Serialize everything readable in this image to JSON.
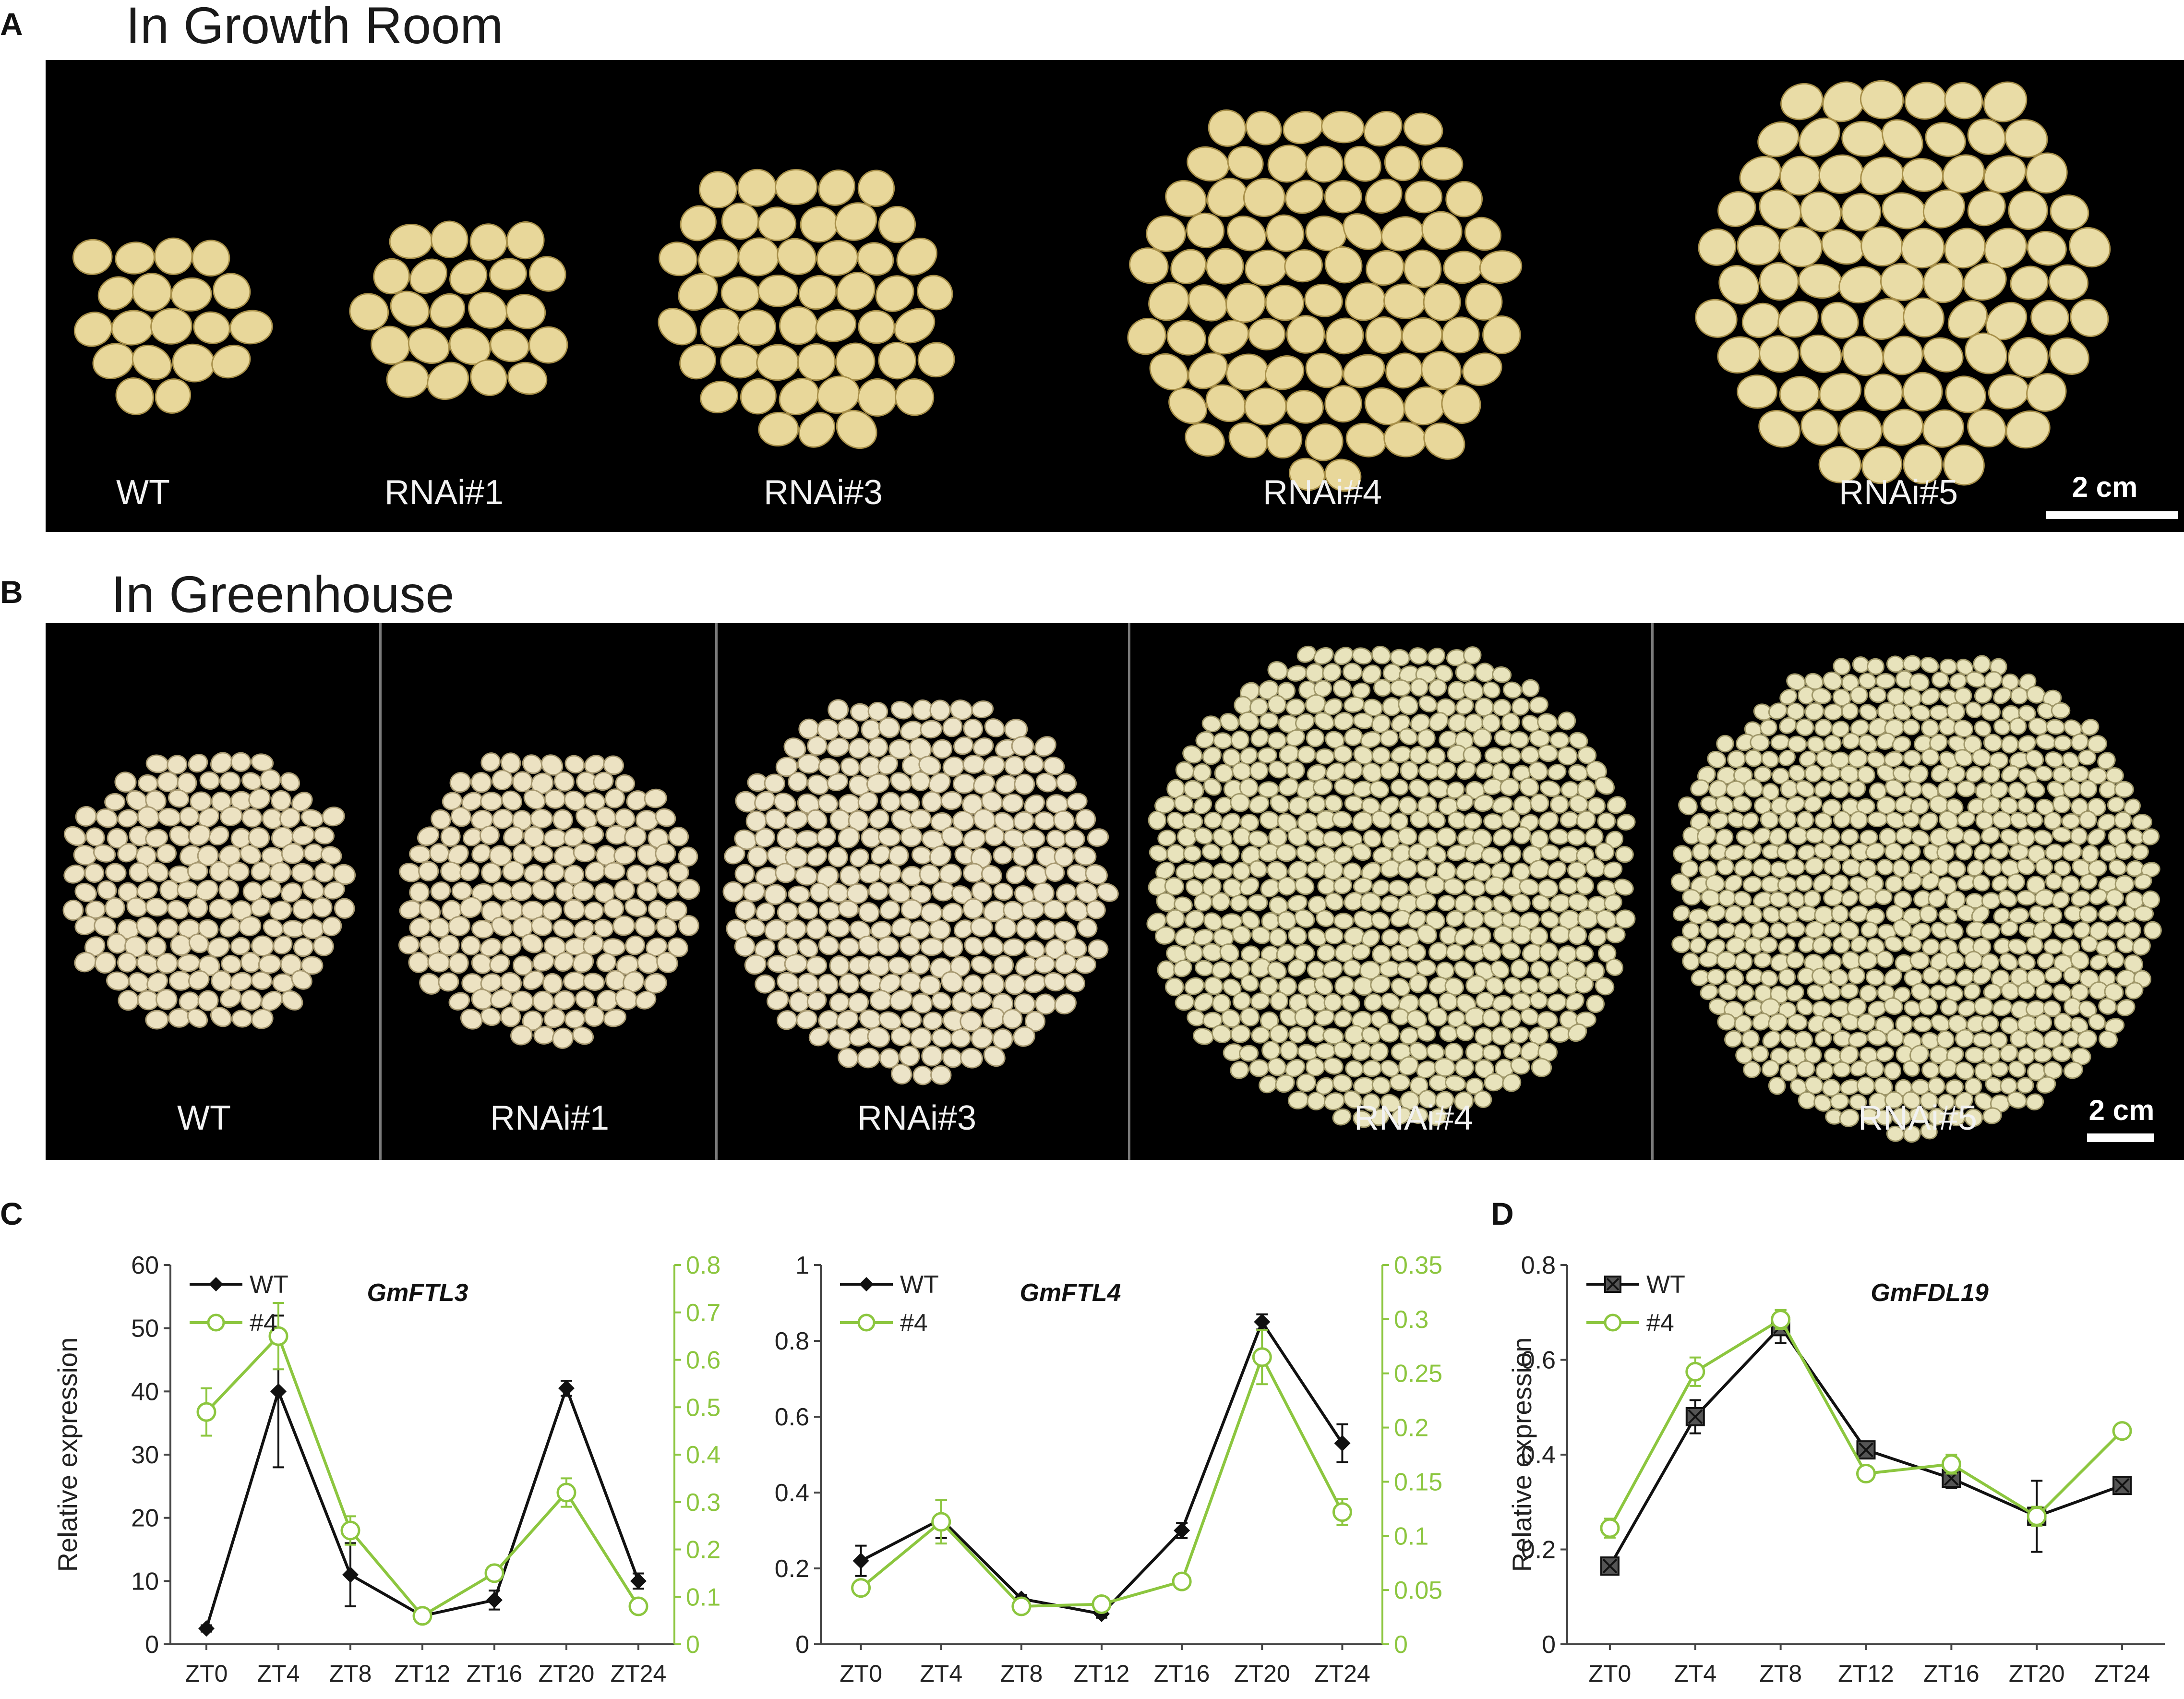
{
  "figure": {
    "panel_a": {
      "letter": "A",
      "title": "In Growth Room",
      "labels": [
        "WT",
        "RNAi#1",
        "RNAi#3",
        "RNAi#4",
        "RNAi#5"
      ],
      "scale": "2 cm"
    },
    "panel_b": {
      "letter": "B",
      "title": "In Greenhouse",
      "labels": [
        "WT",
        "RNAi#1",
        "RNAi#3",
        "RNAi#4",
        "RNAi#5"
      ],
      "scale": "2 cm"
    },
    "panel_c": {
      "letter": "C"
    },
    "panel_d": {
      "letter": "D"
    }
  },
  "colors": {
    "wt_series": "#111111",
    "rnai4_series": "#8cc63f",
    "photo_background": "#000000",
    "seed": "#e8d79a"
  },
  "chart_data": [
    {
      "type": "line",
      "panel": "C",
      "title": "GmFTL3",
      "xlabel": "",
      "ylabel": "Relative expression",
      "categories": [
        "ZT0",
        "ZT4",
        "ZT8",
        "ZT12",
        "ZT16",
        "ZT20",
        "ZT24"
      ],
      "ylim": [
        0,
        60
      ],
      "yticks": [
        0,
        10,
        20,
        30,
        40,
        50,
        60
      ],
      "y2lim": [
        0,
        0.8
      ],
      "y2ticks": [
        "0",
        "0.1",
        "0.2",
        "0.3",
        "0.4",
        "0.5",
        "0.6",
        "0.7",
        "0.8"
      ],
      "legend": "top-left",
      "series": [
        {
          "name": "WT",
          "axis": "left",
          "marker": "diamond",
          "values": [
            2.5,
            40,
            11,
            4.5,
            7,
            40.5,
            10
          ],
          "errors": [
            0.5,
            12,
            5,
            0.8,
            1.5,
            1.2,
            1.2
          ]
        },
        {
          "name": "#4",
          "axis": "right",
          "marker": "open-circle",
          "values": [
            0.49,
            0.65,
            0.24,
            0.06,
            0.15,
            0.32,
            0.08
          ],
          "errors": [
            0.05,
            0.07,
            0.03,
            0.01,
            0.01,
            0.03,
            0.01
          ]
        }
      ]
    },
    {
      "type": "line",
      "panel": "C",
      "title": "GmFTL4",
      "xlabel": "",
      "ylabel": "",
      "categories": [
        "ZT0",
        "ZT4",
        "ZT8",
        "ZT12",
        "ZT16",
        "ZT20",
        "ZT24"
      ],
      "ylim": [
        0,
        1
      ],
      "yticks": [
        0,
        0.2,
        0.4,
        0.6,
        0.8,
        1
      ],
      "y2lim": [
        0,
        0.35
      ],
      "y2ticks": [
        "0",
        "0.05",
        "0.1",
        "0.15",
        "0.2",
        "0.25",
        "0.3",
        "0.35"
      ],
      "legend": "top-left",
      "series": [
        {
          "name": "WT",
          "axis": "left",
          "marker": "diamond",
          "values": [
            0.22,
            0.33,
            0.12,
            0.08,
            0.3,
            0.85,
            0.53
          ],
          "errors": [
            0.04,
            0.05,
            0.01,
            0.01,
            0.02,
            0.02,
            0.05
          ]
        },
        {
          "name": "#4",
          "axis": "right",
          "marker": "open-circle",
          "values": [
            0.052,
            0.113,
            0.035,
            0.037,
            0.058,
            0.265,
            0.122
          ],
          "errors": [
            0.006,
            0.02,
            0.004,
            0.003,
            0.005,
            0.025,
            0.012
          ]
        }
      ]
    },
    {
      "type": "line",
      "panel": "D",
      "title": "GmFDL19",
      "xlabel": "",
      "ylabel": "Relative expression",
      "categories": [
        "ZT0",
        "ZT4",
        "ZT8",
        "ZT12",
        "ZT16",
        "ZT20",
        "ZT24"
      ],
      "ylim": [
        0,
        0.8
      ],
      "yticks": [
        0,
        0.2,
        0.4,
        0.6,
        0.8
      ],
      "legend": "top-left",
      "series": [
        {
          "name": "WT",
          "axis": "left",
          "marker": "boxed-x",
          "values": [
            0.165,
            0.48,
            0.67,
            0.41,
            0.35,
            0.27,
            0.335
          ],
          "errors": [
            0.01,
            0.035,
            0.035,
            0.01,
            0.02,
            0.075,
            0.01
          ]
        },
        {
          "name": "#4",
          "axis": "left",
          "marker": "open-circle",
          "values": [
            0.245,
            0.575,
            0.685,
            0.36,
            0.38,
            0.27,
            0.45
          ],
          "errors": [
            0.02,
            0.03,
            0.02,
            0.01,
            0.02,
            0.02,
            0.015
          ]
        }
      ]
    }
  ]
}
